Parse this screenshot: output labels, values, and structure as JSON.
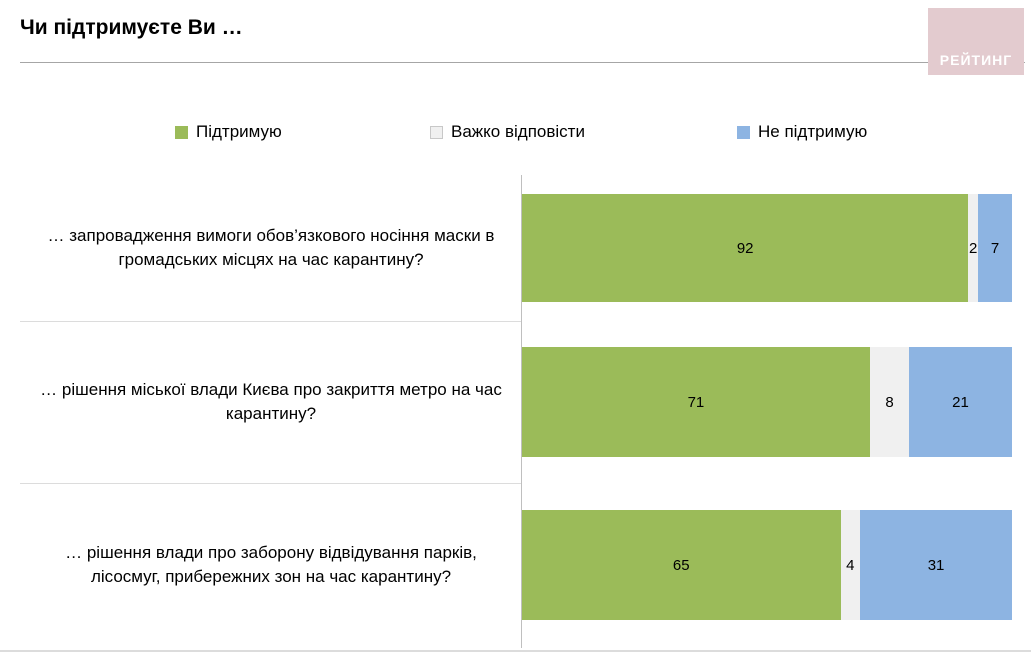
{
  "header": {
    "title": "Чи підтримуєте Ви …",
    "logo_text": "РЕЙТИНГ"
  },
  "colors": {
    "support": "#9bbb59",
    "hard_to_answer": "#f0f0f0",
    "not_support": "#8db4e2",
    "axis_line": "#bfbfbf",
    "logo_background": "#e3cbcf"
  },
  "chart_data": {
    "type": "bar",
    "orientation": "horizontal",
    "stacked": true,
    "title": "Чи підтримуєте Ви …",
    "xlim": [
      0,
      100
    ],
    "legend_position": "top",
    "grid": false,
    "categories": [
      "… запровадження вимоги обов’язкового носіння маски в громадських місцях на час карантину?",
      "… рішення міської влади Києва про закриття метро на час карантину?",
      "… рішення влади про заборону відвідування парків, лісосмуг, прибережних зон на час карантину?"
    ],
    "series": [
      {
        "name": "Підтримую",
        "color": "#9bbb59",
        "values": [
          92,
          71,
          65
        ]
      },
      {
        "name": "Важко відповісти",
        "color": "#f0f0f0",
        "values": [
          2,
          8,
          4
        ]
      },
      {
        "name": "Не підтримую",
        "color": "#8db4e2",
        "values": [
          7,
          21,
          31
        ]
      }
    ]
  }
}
